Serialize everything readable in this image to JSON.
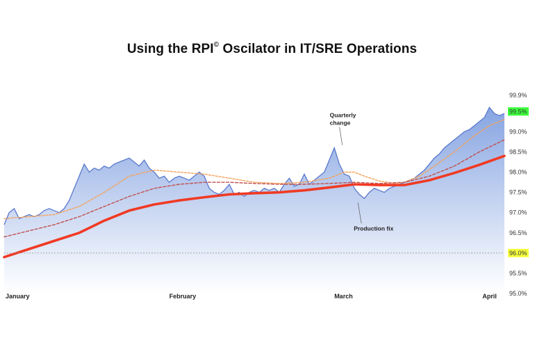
{
  "title_main": "Using the RPI",
  "title_mark": "©",
  "title_rest": " Oscilator in IT/SRE Operations",
  "chart_data": {
    "type": "area",
    "title": "Using the RPI© Oscilator in IT/SRE Operations",
    "xlabel": "",
    "ylabel": "",
    "ylim": [
      95.0,
      99.9
    ],
    "y_ticks": [
      "99.9%",
      "99.5%",
      "99.0%",
      "98.5%",
      "98.0%",
      "97.5%",
      "97.0%",
      "96.5%",
      "96.0%",
      "95.5%",
      "95.0%"
    ],
    "x_labels": [
      "January",
      "February",
      "March",
      "April"
    ],
    "colors": {
      "area_top": "#7f9fe0",
      "area_bottom": "#ffffff",
      "line": "#5a78cc",
      "orange": "#f5a35a",
      "red_dashed": "#c0504d",
      "red_thick": "#f03a24",
      "hl_green": "#3dff3d",
      "hl_yellow": "#f5ff3d"
    },
    "highlight_labels": [
      {
        "value": 99.5,
        "label": "99.5%",
        "color": "#3dff3d"
      },
      {
        "value": 96.0,
        "label": "96.0%",
        "color": "#f5ff3d"
      }
    ],
    "reference_line": {
      "value": 96.0,
      "style": "dotted"
    },
    "annotations": [
      {
        "text": [
          "Quarterly",
          "change"
        ],
        "x": 66.2,
        "y": 98.6
      },
      {
        "text": [
          "Production fix"
        ],
        "x": 71.0,
        "y": 97.35
      }
    ],
    "series": [
      {
        "name": "",
        "style": "area",
        "x": [
          0,
          1,
          2,
          3,
          4,
          5,
          6,
          7,
          8,
          9,
          10,
          11,
          12,
          13,
          14,
          15,
          16,
          17,
          18,
          19,
          20,
          21,
          22,
          23,
          24,
          25,
          26,
          27,
          28,
          29,
          30,
          31,
          32,
          33,
          34,
          35,
          36,
          37,
          38,
          39,
          40,
          41,
          42,
          43,
          44,
          45,
          46,
          47,
          48,
          49,
          50,
          51,
          52,
          53,
          54,
          55,
          56,
          57,
          58,
          59,
          60,
          61,
          62,
          63,
          64,
          65,
          66,
          67,
          68,
          69,
          70,
          71,
          72,
          73,
          74,
          75,
          76,
          77,
          78,
          79,
          80,
          81,
          82,
          83,
          84,
          85,
          86,
          87,
          88,
          89,
          90,
          91,
          92,
          93,
          94,
          95,
          96,
          97,
          98,
          99,
          100
        ],
        "y": [
          96.7,
          97.0,
          97.1,
          96.85,
          96.9,
          96.95,
          96.9,
          96.95,
          97.05,
          97.1,
          97.05,
          97.0,
          97.1,
          97.3,
          97.6,
          97.9,
          98.2,
          98.0,
          98.1,
          98.05,
          98.15,
          98.1,
          98.2,
          98.25,
          98.3,
          98.35,
          98.25,
          98.15,
          98.3,
          98.1,
          98.0,
          97.85,
          97.9,
          97.75,
          97.85,
          97.9,
          97.85,
          97.8,
          97.9,
          98.0,
          97.9,
          97.6,
          97.5,
          97.45,
          97.55,
          97.7,
          97.45,
          97.5,
          97.4,
          97.5,
          97.55,
          97.5,
          97.6,
          97.55,
          97.6,
          97.5,
          97.7,
          97.85,
          97.65,
          97.7,
          97.95,
          97.7,
          97.8,
          97.9,
          98.0,
          98.3,
          98.6,
          98.2,
          97.95,
          97.9,
          97.6,
          97.45,
          97.35,
          97.5,
          97.6,
          97.55,
          97.5,
          97.6,
          97.65,
          97.7,
          97.75,
          97.8,
          97.85,
          97.95,
          98.05,
          98.2,
          98.35,
          98.45,
          98.6,
          98.7,
          98.8,
          98.9,
          99.0,
          99.05,
          99.15,
          99.25,
          99.35,
          99.6,
          99.45,
          99.4,
          99.45
        ]
      },
      {
        "name": "",
        "style": "dotted-orange",
        "x": [
          0,
          5,
          10,
          15,
          20,
          25,
          30,
          35,
          40,
          45,
          50,
          55,
          60,
          65,
          68,
          70,
          72,
          75,
          78,
          80,
          83,
          86,
          90,
          94,
          97,
          100
        ],
        "y": [
          96.85,
          96.9,
          96.95,
          97.15,
          97.5,
          97.9,
          98.05,
          98.0,
          97.95,
          97.85,
          97.75,
          97.72,
          97.75,
          97.85,
          98.0,
          98.0,
          97.9,
          97.78,
          97.72,
          97.75,
          97.9,
          98.15,
          98.5,
          98.9,
          99.15,
          99.3
        ]
      },
      {
        "name": "",
        "style": "dashed-red",
        "x": [
          0,
          5,
          10,
          15,
          20,
          25,
          30,
          35,
          40,
          45,
          50,
          55,
          60,
          65,
          70,
          75,
          80,
          85,
          90,
          95,
          100
        ],
        "y": [
          96.4,
          96.55,
          96.7,
          96.9,
          97.15,
          97.4,
          97.6,
          97.7,
          97.75,
          97.75,
          97.72,
          97.7,
          97.7,
          97.72,
          97.75,
          97.72,
          97.75,
          97.9,
          98.15,
          98.5,
          98.8
        ]
      },
      {
        "name": "",
        "style": "solid-red",
        "x": [
          0,
          5,
          10,
          15,
          20,
          25,
          30,
          35,
          40,
          45,
          50,
          55,
          60,
          65,
          70,
          75,
          80,
          85,
          90,
          95,
          100
        ],
        "y": [
          95.9,
          96.1,
          96.3,
          96.5,
          96.8,
          97.05,
          97.2,
          97.3,
          97.38,
          97.45,
          97.48,
          97.5,
          97.55,
          97.62,
          97.7,
          97.68,
          97.68,
          97.8,
          97.98,
          98.18,
          98.4
        ]
      }
    ]
  }
}
